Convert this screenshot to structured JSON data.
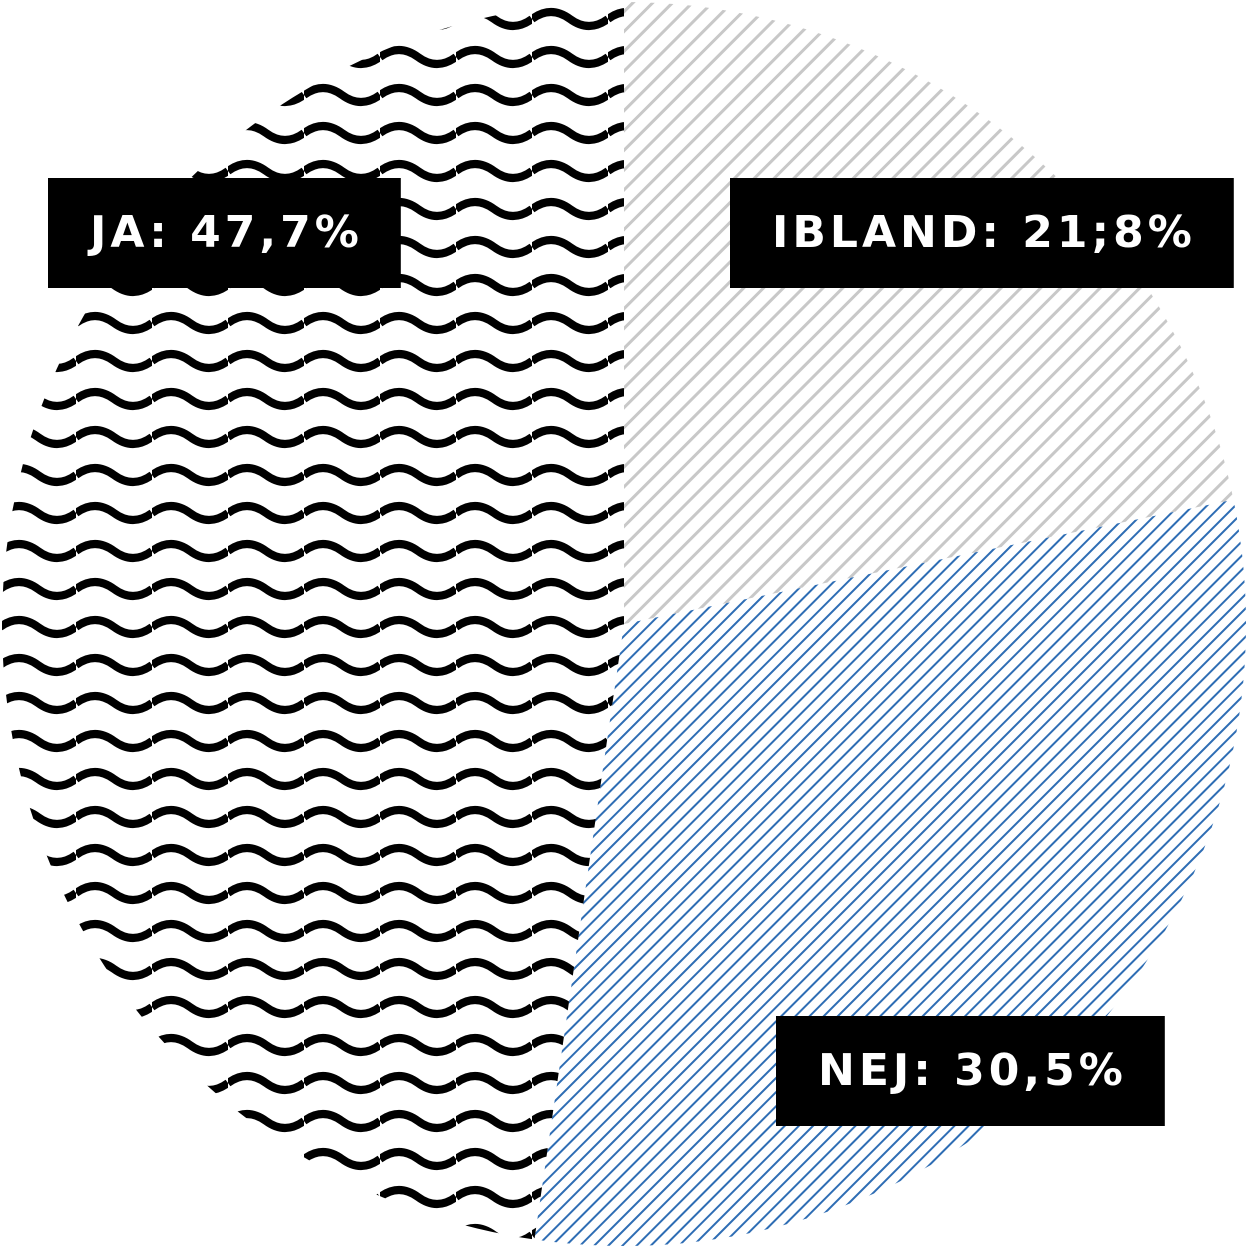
{
  "chart_data": {
    "type": "pie",
    "categories": [
      "IBLAND",
      "NEJ",
      "JA"
    ],
    "values": [
      21.8,
      30.5,
      47.7
    ],
    "value_labels": [
      "IBLAND: 21;8%",
      "NEJ: 30,5%",
      "JA: 47,7%"
    ],
    "colors": [
      "#c8c8c8",
      "#2e6db4",
      "#000000"
    ]
  }
}
